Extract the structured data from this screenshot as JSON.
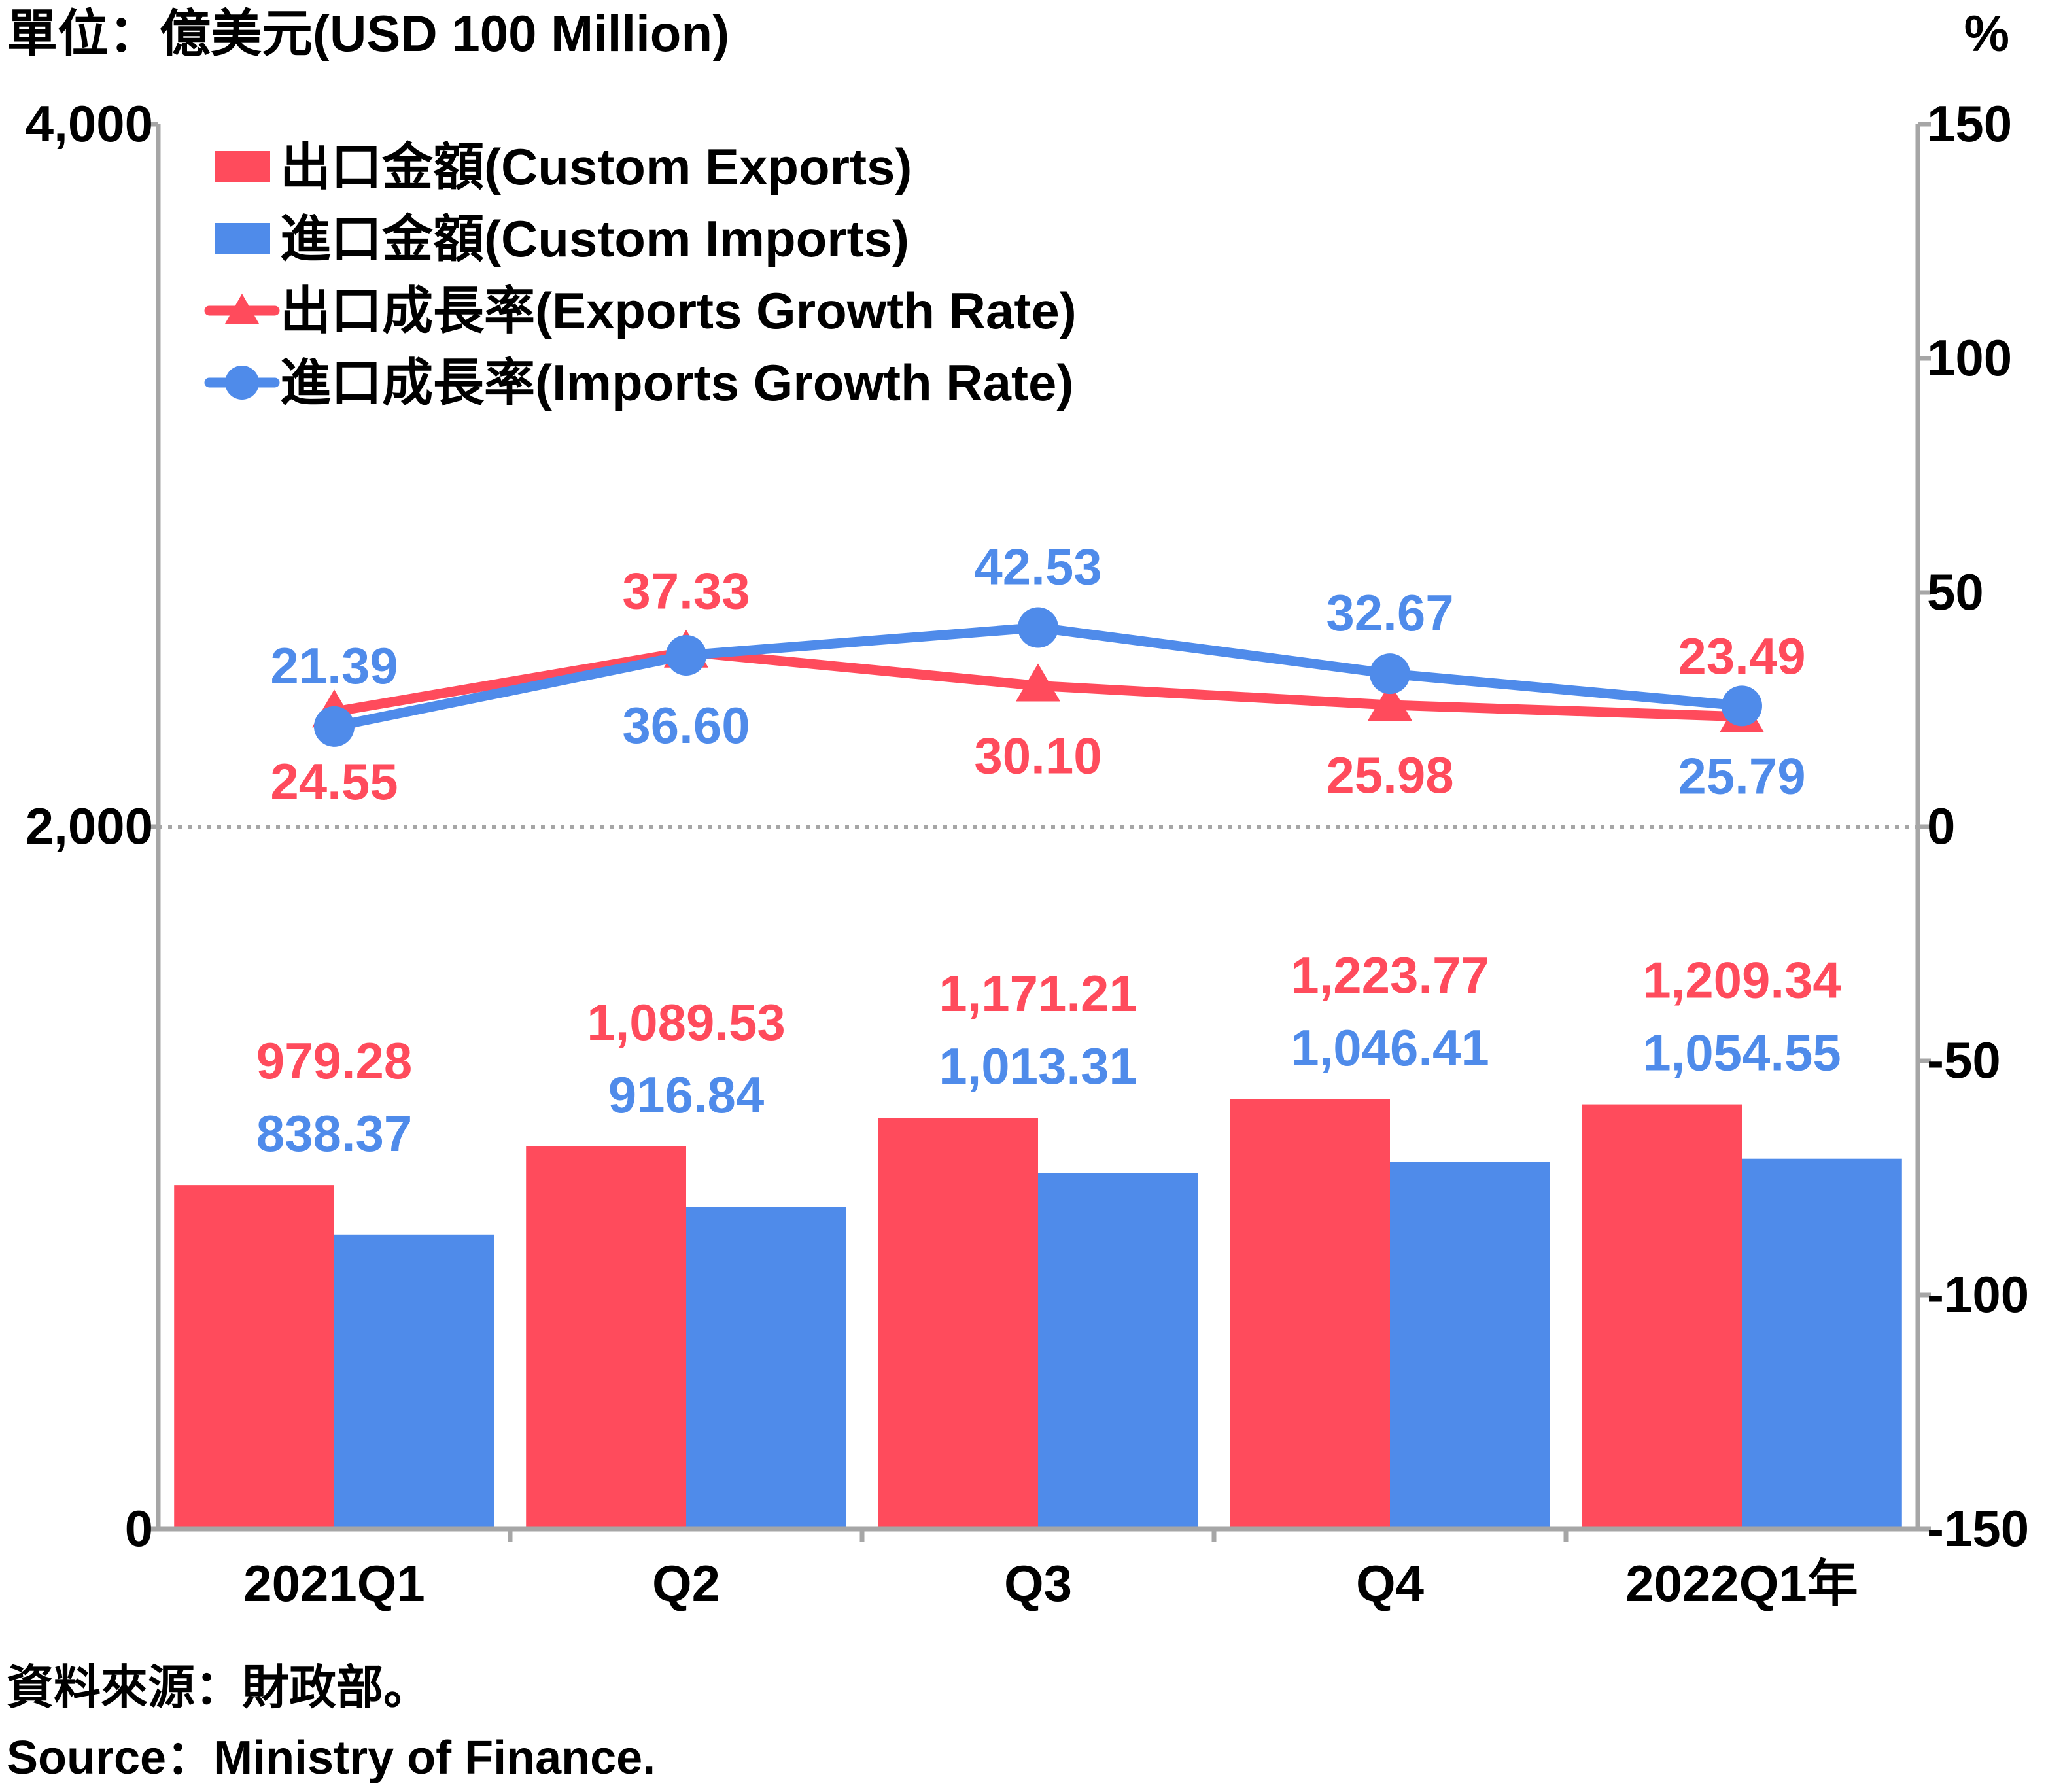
{
  "labels": {
    "left_unit": "單位：億美元(USD 100 Million)",
    "right_unit": "%",
    "source_zh": "資料來源：財政部。",
    "source_en": "Source：Ministry of Finance."
  },
  "legend": [
    {
      "key": "exports",
      "label": "出口金額(Custom Exports)",
      "kind": "bar",
      "color": "#ff4b5c"
    },
    {
      "key": "imports",
      "label": "進口金額(Custom Imports)",
      "kind": "bar",
      "color": "#4f8bea"
    },
    {
      "key": "exports_rate",
      "label": "出口成長率(Exports Growth Rate)",
      "kind": "line-triangle",
      "color": "#ff4b5c"
    },
    {
      "key": "imports_rate",
      "label": "進口成長率(Imports Growth Rate)",
      "kind": "line-circle",
      "color": "#4f8bea"
    }
  ],
  "chart_data": {
    "type": "bar",
    "categories": [
      "2021Q1",
      "Q2",
      "Q3",
      "Q4",
      "2022Q1年"
    ],
    "series": [
      {
        "name": "出口金額(Custom Exports)",
        "type": "bar",
        "axis": "left",
        "color": "#ff4b5c",
        "values": [
          979.28,
          1089.53,
          1171.21,
          1223.77,
          1209.34
        ],
        "labels": [
          "979.28",
          "1,089.53",
          "1,171.21",
          "1,223.77",
          "1,209.34"
        ]
      },
      {
        "name": "進口金額(Custom Imports)",
        "type": "bar",
        "axis": "left",
        "color": "#4f8bea",
        "values": [
          838.37,
          916.84,
          1013.31,
          1046.41,
          1054.55
        ],
        "labels": [
          "838.37",
          "916.84",
          "1,013.31",
          "1,046.41",
          "1,054.55"
        ]
      },
      {
        "name": "出口成長率(Exports Growth Rate)",
        "type": "line",
        "marker": "triangle",
        "axis": "right",
        "color": "#ff4b5c",
        "values": [
          24.55,
          37.33,
          30.1,
          25.98,
          23.49
        ],
        "labels": [
          "24.55",
          "37.33",
          "30.10",
          "25.98",
          "23.49"
        ],
        "label_pos": [
          "below",
          "above",
          "below",
          "below",
          "above"
        ]
      },
      {
        "name": "進口成長率(Imports Growth Rate)",
        "type": "line",
        "marker": "circle",
        "axis": "right",
        "color": "#4f8bea",
        "values": [
          21.39,
          36.6,
          42.53,
          32.67,
          25.79
        ],
        "labels": [
          "21.39",
          "36.60",
          "42.53",
          "32.67",
          "25.79"
        ],
        "label_pos": [
          "above",
          "below",
          "above",
          "above",
          "below"
        ]
      }
    ],
    "y_left": {
      "min": 0,
      "max": 4000,
      "ticks": [
        0,
        2000,
        4000
      ],
      "tick_labels": [
        "0",
        "2,000",
        "4,000"
      ]
    },
    "y_right": {
      "min": -150,
      "max": 150,
      "ticks": [
        -150,
        -100,
        -50,
        0,
        50,
        100,
        150
      ],
      "tick_labels": [
        "-150",
        "-100",
        "-50",
        "0",
        "50",
        "100",
        "150"
      ]
    },
    "zero_line": {
      "axis": "right",
      "value": 0,
      "style": "dotted"
    },
    "legend_position": "top-left",
    "grid": false
  }
}
